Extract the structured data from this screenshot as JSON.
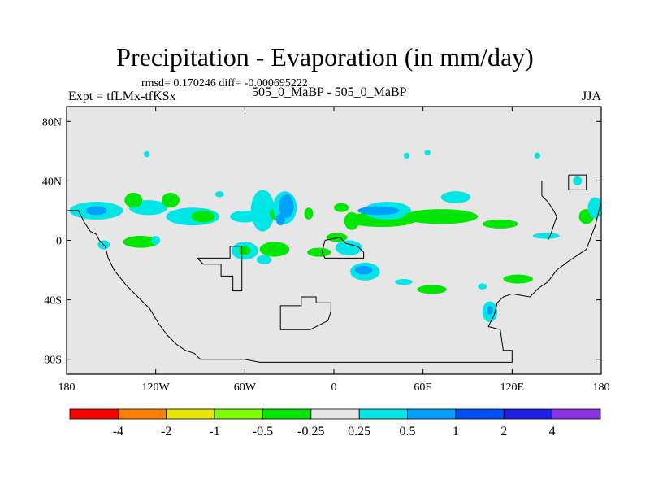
{
  "chart_data": {
    "type": "contour-map",
    "title": "Precipitation - Evaporation (in mm/day)",
    "stats": "rmsd= 0.170246 diff= -0.000695222",
    "left_label": "Expt = tfLMx-tfKSx",
    "center_label": "505_0_MaBP - 505_0_MaBP",
    "right_label": "JJA",
    "xlim": [
      -180,
      180
    ],
    "ylim": [
      -90,
      90
    ],
    "x_ticks": [
      {
        "value": -180,
        "label": "180"
      },
      {
        "value": -120,
        "label": "120W"
      },
      {
        "value": -60,
        "label": "60W"
      },
      {
        "value": 0,
        "label": "0"
      },
      {
        "value": 60,
        "label": "60E"
      },
      {
        "value": 120,
        "label": "120E"
      },
      {
        "value": 180,
        "label": "180"
      }
    ],
    "y_ticks": [
      {
        "value": 80,
        "label": "80N"
      },
      {
        "value": 40,
        "label": "40N"
      },
      {
        "value": 0,
        "label": "0"
      },
      {
        "value": -40,
        "label": "40S"
      },
      {
        "value": -80,
        "label": "80S"
      }
    ],
    "colorbar": {
      "colors": [
        "#ff0000",
        "#ff8000",
        "#e6e600",
        "#80ff00",
        "#00e600",
        "#e6e6e6",
        "#00e6e6",
        "#00a0ff",
        "#0050ff",
        "#1e1ee6",
        "#8c32e6"
      ],
      "labels": [
        "-4",
        "-2",
        "-1",
        "-0.5",
        "-0.25",
        "0.25",
        "0.5",
        "1",
        "2",
        "4"
      ]
    },
    "regions": [
      {
        "color": "#00e6e6",
        "lon": -160,
        "lat": 20,
        "rlon": 18,
        "rlat": 6
      },
      {
        "color": "#00a0ff",
        "lon": -160,
        "lat": 20,
        "rlon": 7,
        "rlat": 3
      },
      {
        "color": "#00e6e6",
        "lon": -125,
        "lat": 22,
        "rlon": 13,
        "rlat": 5
      },
      {
        "color": "#00e600",
        "lon": -135,
        "lat": 27,
        "rlon": 6,
        "rlat": 5
      },
      {
        "color": "#00e600",
        "lon": -110,
        "lat": 27,
        "rlon": 6,
        "rlat": 5
      },
      {
        "color": "#00e6e6",
        "lon": -95,
        "lat": 16,
        "rlon": 18,
        "rlat": 6
      },
      {
        "color": "#00e600",
        "lon": -88,
        "lat": 16,
        "rlon": 8,
        "rlat": 4
      },
      {
        "color": "#00e6e6",
        "lon": -60,
        "lat": 16,
        "rlon": 10,
        "rlat": 4
      },
      {
        "color": "#00e6e6",
        "lon": -48,
        "lat": 20,
        "rlon": 8,
        "rlat": 14
      },
      {
        "color": "#00e600",
        "lon": -37,
        "lat": 18,
        "rlon": 6,
        "rlat": 5
      },
      {
        "color": "#00e6e6",
        "lon": -33,
        "lat": 22,
        "rlon": 8,
        "rlat": 11
      },
      {
        "color": "#00a0ff",
        "lon": -32,
        "lat": 23,
        "rlon": 5,
        "rlat": 8
      },
      {
        "color": "#00a0ff",
        "lon": -36,
        "lat": 14,
        "rlon": 3,
        "rlat": 4
      },
      {
        "color": "#00e600",
        "lon": -17,
        "lat": 18,
        "rlon": 3,
        "rlat": 4
      },
      {
        "color": "#00e600",
        "lon": 5,
        "lat": 22,
        "rlon": 5,
        "rlat": 3
      },
      {
        "color": "#00e600",
        "lon": 12,
        "lat": 13,
        "rlon": 5,
        "rlat": 6
      },
      {
        "color": "#00e600",
        "lon": 32,
        "lat": 14,
        "rlon": 24,
        "rlat": 5
      },
      {
        "color": "#00e6e6",
        "lon": 36,
        "lat": 20,
        "rlon": 16,
        "rlat": 6
      },
      {
        "color": "#00a0ff",
        "lon": 30,
        "lat": 20,
        "rlon": 14,
        "rlat": 3
      },
      {
        "color": "#00e600",
        "lon": 72,
        "lat": 16,
        "rlon": 25,
        "rlat": 5
      },
      {
        "color": "#00e6e6",
        "lon": 82,
        "lat": 29,
        "rlon": 10,
        "rlat": 4
      },
      {
        "color": "#00e600",
        "lon": 112,
        "lat": 11,
        "rlon": 12,
        "rlat": 3
      },
      {
        "color": "#00e600",
        "lon": 170,
        "lat": 16,
        "rlon": 5,
        "rlat": 5
      },
      {
        "color": "#00e6e6",
        "lon": 176,
        "lat": 22,
        "rlon": 5,
        "rlat": 7
      },
      {
        "color": "#00e6e6",
        "lon": 143,
        "lat": 3,
        "rlon": 9,
        "rlat": 2
      },
      {
        "color": "#00e600",
        "lon": -130,
        "lat": -1,
        "rlon": 12,
        "rlat": 4
      },
      {
        "color": "#00e6e6",
        "lon": -155,
        "lat": -3,
        "rlon": 4,
        "rlat": 3
      },
      {
        "color": "#00e6e6",
        "lon": -120,
        "lat": 0,
        "rlon": 3,
        "rlat": 3
      },
      {
        "color": "#00e6e6",
        "lon": -60,
        "lat": -7,
        "rlon": 9,
        "rlat": 6
      },
      {
        "color": "#00e600",
        "lon": -60,
        "lat": -7,
        "rlon": 4,
        "rlat": 3
      },
      {
        "color": "#00e600",
        "lon": -40,
        "lat": -6,
        "rlon": 10,
        "rlat": 5
      },
      {
        "color": "#00e6e6",
        "lon": -47,
        "lat": -13,
        "rlon": 5,
        "rlat": 3
      },
      {
        "color": "#00e600",
        "lon": -10,
        "lat": -8,
        "rlon": 8,
        "rlat": 3
      },
      {
        "color": "#00e600",
        "lon": 2,
        "lat": 2,
        "rlon": 7,
        "rlat": 3
      },
      {
        "color": "#00e6e6",
        "lon": 10,
        "lat": -5,
        "rlon": 9,
        "rlat": 5
      },
      {
        "color": "#00e6e6",
        "lon": 21,
        "lat": -21,
        "rlon": 10,
        "rlat": 6
      },
      {
        "color": "#00a0ff",
        "lon": 20,
        "lat": -20,
        "rlon": 6,
        "rlat": 3
      },
      {
        "color": "#00e6e6",
        "lon": 47,
        "lat": -28,
        "rlon": 6,
        "rlat": 2
      },
      {
        "color": "#00e600",
        "lon": 66,
        "lat": -33,
        "rlon": 10,
        "rlat": 3
      },
      {
        "color": "#00e600",
        "lon": 124,
        "lat": -26,
        "rlon": 10,
        "rlat": 3
      },
      {
        "color": "#00e6e6",
        "lon": 105,
        "lat": -48,
        "rlon": 5,
        "rlat": 7
      },
      {
        "color": "#00a0ff",
        "lon": 105,
        "lat": -47,
        "rlon": 2,
        "rlat": 3
      },
      {
        "color": "#00e6e6",
        "lon": -126,
        "lat": 58,
        "rlon": 2,
        "rlat": 2
      },
      {
        "color": "#00e6e6",
        "lon": 63,
        "lat": 59,
        "rlon": 2,
        "rlat": 2
      },
      {
        "color": "#00e6e6",
        "lon": 137,
        "lat": 57,
        "rlon": 2,
        "rlat": 2
      },
      {
        "color": "#00e6e6",
        "lon": 164,
        "lat": 40,
        "rlon": 3,
        "rlat": 3
      },
      {
        "color": "#00e6e6",
        "lon": -77,
        "lat": 31,
        "rlon": 3,
        "rlat": 2
      },
      {
        "color": "#00e6e6",
        "lon": 49,
        "lat": 57,
        "rlon": 2,
        "rlat": 2
      },
      {
        "color": "#00e6e6",
        "lon": 100,
        "lat": -31,
        "rlon": 3,
        "rlat": 2
      }
    ],
    "coastlines": [
      [
        [
          -180,
          20
        ],
        [
          -172,
          20
        ],
        [
          -168,
          12
        ],
        [
          -164,
          6
        ],
        [
          -160,
          4
        ],
        [
          -158,
          0
        ],
        [
          -154,
          -4
        ],
        [
          -152,
          -12
        ],
        [
          -148,
          -20
        ],
        [
          -140,
          -30
        ],
        [
          -132,
          -38
        ],
        [
          -124,
          -46
        ],
        [
          -118,
          -56
        ],
        [
          -112,
          -64
        ],
        [
          -106,
          -70
        ],
        [
          -100,
          -74
        ],
        [
          -94,
          -76
        ],
        [
          -90,
          -80
        ],
        [
          -60,
          -80
        ],
        [
          -50,
          -82
        ],
        [
          120,
          -82
        ],
        [
          120,
          -74
        ],
        [
          114,
          -74
        ],
        [
          112,
          -60
        ],
        [
          104,
          -58
        ],
        [
          108,
          -50
        ],
        [
          110,
          -42
        ],
        [
          114,
          -38
        ],
        [
          120,
          -36
        ],
        [
          132,
          -38
        ],
        [
          138,
          -32
        ],
        [
          144,
          -28
        ],
        [
          150,
          -20
        ],
        [
          158,
          -14
        ],
        [
          164,
          -10
        ],
        [
          170,
          -6
        ],
        [
          176,
          10
        ],
        [
          180,
          26
        ]
      ],
      [
        [
          -92,
          -12
        ],
        [
          -70,
          -12
        ],
        [
          -70,
          -4
        ],
        [
          -62,
          -4
        ],
        [
          -62,
          -34
        ],
        [
          -68,
          -34
        ],
        [
          -68,
          -24
        ],
        [
          -76,
          -24
        ],
        [
          -76,
          -16
        ],
        [
          -86,
          -16
        ],
        [
          -88,
          -16
        ],
        [
          -92,
          -12
        ]
      ],
      [
        [
          -36,
          -54
        ],
        [
          -36,
          -44
        ],
        [
          -22,
          -44
        ],
        [
          -22,
          -38
        ],
        [
          -12,
          -38
        ],
        [
          -12,
          -42
        ],
        [
          -2,
          -42
        ],
        [
          -2,
          -48
        ],
        [
          -4,
          -54
        ],
        [
          -16,
          -60
        ],
        [
          -36,
          -60
        ],
        [
          -36,
          -54
        ]
      ],
      [
        [
          -6,
          0
        ],
        [
          4,
          2
        ],
        [
          8,
          -2
        ],
        [
          16,
          -4
        ],
        [
          20,
          -8
        ],
        [
          20,
          -12
        ],
        [
          -6,
          -12
        ],
        [
          -8,
          -8
        ],
        [
          -6,
          0
        ]
      ],
      [
        [
          140,
          40
        ],
        [
          140,
          30
        ],
        [
          144,
          26
        ],
        [
          148,
          20
        ],
        [
          150,
          16
        ],
        [
          148,
          10
        ],
        [
          146,
          4
        ],
        [
          144,
          0
        ]
      ],
      [
        [
          158,
          44
        ],
        [
          170,
          44
        ],
        [
          170,
          34
        ],
        [
          158,
          34
        ],
        [
          158,
          44
        ]
      ]
    ]
  }
}
